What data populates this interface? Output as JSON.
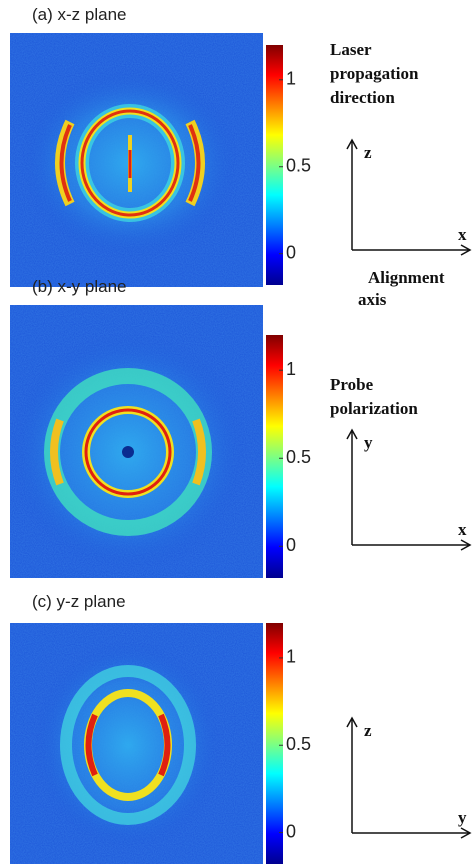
{
  "panels": [
    {
      "title": "(a) x-z plane",
      "colorbar": {
        "clim": [
          -0.18,
          1.2
        ],
        "ticks": [
          0,
          0.5,
          1
        ]
      },
      "axes": {
        "vertical": "z",
        "horizontal": "x"
      },
      "caption_top": [
        "Laser",
        "propagation",
        "direction"
      ],
      "caption_bottom": [
        "Alignment",
        "axis"
      ]
    },
    {
      "title": "(b) x-y plane",
      "colorbar": {
        "clim": [
          -0.18,
          1.2
        ],
        "ticks": [
          0,
          0.5,
          1
        ]
      },
      "axes": {
        "vertical": "y",
        "horizontal": "x"
      },
      "caption_top": [
        "Probe",
        "polarization"
      ]
    },
    {
      "title": "(c) y-z plane",
      "colorbar": {
        "clim": [
          -0.18,
          1.2
        ],
        "ticks": [
          0,
          0.5,
          1
        ]
      },
      "axes": {
        "vertical": "z",
        "horizontal": "y"
      }
    }
  ]
}
